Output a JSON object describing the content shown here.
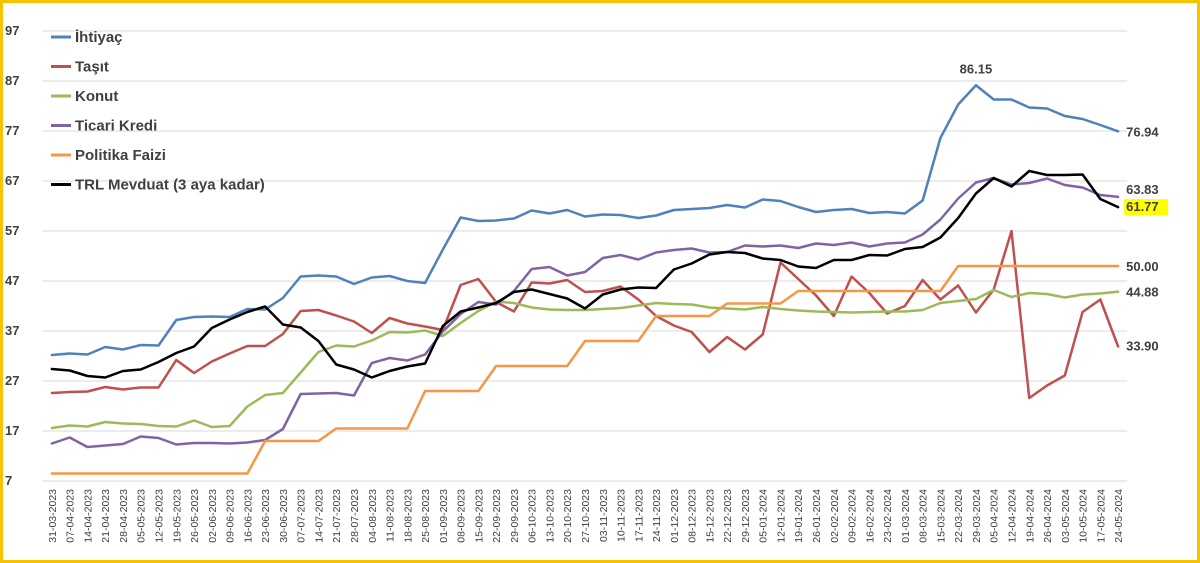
{
  "chart_data": {
    "type": "line",
    "title": "",
    "xlabel": "",
    "ylabel": "",
    "ylim": [
      7,
      97
    ],
    "yticks": [
      7,
      17,
      27,
      37,
      47,
      57,
      67,
      77,
      87,
      97
    ],
    "grid": "horizontal",
    "legend_position": "top-left",
    "x": [
      "31-03-2023",
      "07-04-2023",
      "14-04-2023",
      "21-04-2023",
      "28-04-2023",
      "05-05-2023",
      "12-05-2023",
      "19-05-2023",
      "26-05-2023",
      "02-06-2023",
      "09-06-2023",
      "16-06-2023",
      "23-06-2023",
      "30-06-2023",
      "07-07-2023",
      "14-07-2023",
      "21-07-2023",
      "28-07-2023",
      "04-08-2023",
      "11-08-2023",
      "18-08-2023",
      "25-08-2023",
      "01-09-2023",
      "08-09-2023",
      "15-09-2023",
      "22-09-2023",
      "29-09-2023",
      "06-10-2023",
      "13-10-2023",
      "20-10-2023",
      "27-10-2023",
      "03-11-2023",
      "10-11-2023",
      "17-11-2023",
      "24-11-2023",
      "01-12-2023",
      "08-12-2023",
      "15-12-2023",
      "22-12-2023",
      "29-12-2023",
      "05-01-2024",
      "12-01-2024",
      "19-01-2024",
      "26-01-2024",
      "02-02-2024",
      "09-02-2024",
      "16-02-2024",
      "23-02-2024",
      "01-03-2024",
      "08-03-2024",
      "15-03-2024",
      "22-03-2024",
      "29-03-2024",
      "05-04-2024",
      "12-04-2024",
      "19-04-2024",
      "26-04-2024",
      "03-05-2024",
      "10-05-2024",
      "17-05-2024",
      "24-05-2024"
    ],
    "series": [
      {
        "name": "İhtiyaç",
        "color": "#4f81bd",
        "end_label": "76.94",
        "peak_label": "86.15",
        "peak_index": 52,
        "values": [
          32.2,
          32.5,
          32.3,
          33.8,
          33.3,
          34.2,
          34.1,
          39.2,
          39.8,
          39.9,
          39.8,
          41.4,
          41.3,
          43.6,
          47.9,
          48.1,
          47.9,
          46.4,
          47.7,
          48.0,
          47.0,
          46.6,
          53.3,
          59.7,
          59.0,
          59.1,
          59.5,
          61.1,
          60.5,
          61.2,
          59.9,
          60.3,
          60.2,
          59.6,
          60.1,
          61.2,
          61.4,
          61.6,
          62.2,
          61.7,
          63.3,
          63.0,
          61.8,
          60.8,
          61.2,
          61.4,
          60.6,
          60.8,
          60.5,
          63.1,
          75.6,
          82.3,
          86.15,
          83.3,
          83.3,
          81.7,
          81.5,
          80.0,
          79.4,
          78.2,
          76.94
        ]
      },
      {
        "name": "Taşıt",
        "color": "#c0504d",
        "end_label": "33.90",
        "values": [
          24.6,
          24.8,
          24.9,
          25.8,
          25.3,
          25.7,
          25.7,
          31.2,
          28.6,
          30.9,
          32.5,
          34.0,
          34.0,
          36.4,
          41.0,
          41.2,
          40.1,
          38.9,
          36.6,
          39.6,
          38.5,
          37.9,
          37.2,
          46.2,
          47.4,
          42.8,
          40.9,
          46.7,
          46.5,
          47.2,
          44.8,
          45.0,
          45.9,
          43.3,
          40.0,
          38.1,
          36.8,
          32.8,
          35.8,
          33.3,
          36.3,
          50.7,
          47.4,
          44.1,
          40.0,
          47.9,
          44.6,
          40.5,
          42.0,
          47.2,
          43.3,
          46.1,
          40.7,
          45.3,
          57.0,
          23.6,
          26.1,
          28.1,
          40.8,
          43.3,
          33.9
        ]
      },
      {
        "name": "Konut",
        "color": "#9bbb59",
        "end_label": "44.88",
        "values": [
          17.6,
          18.1,
          17.9,
          18.8,
          18.5,
          18.4,
          18.0,
          17.9,
          19.1,
          17.8,
          18.0,
          21.9,
          24.2,
          24.6,
          28.7,
          32.8,
          34.1,
          33.9,
          35.1,
          36.8,
          36.7,
          37.1,
          36.0,
          38.6,
          41.0,
          42.9,
          42.6,
          41.7,
          41.3,
          41.2,
          41.2,
          41.4,
          41.6,
          42.1,
          42.6,
          42.4,
          42.3,
          41.7,
          41.5,
          41.3,
          41.8,
          41.4,
          41.1,
          40.9,
          40.8,
          40.7,
          40.8,
          40.9,
          40.9,
          41.2,
          42.6,
          43.0,
          43.4,
          45.2,
          43.8,
          44.6,
          44.4,
          43.7,
          44.3,
          44.5,
          44.88
        ]
      },
      {
        "name": "Ticari Kredi",
        "color": "#8064a2",
        "end_label": "63.83",
        "values": [
          14.5,
          15.7,
          13.8,
          14.1,
          14.4,
          15.9,
          15.6,
          14.3,
          14.6,
          14.6,
          14.5,
          14.7,
          15.2,
          17.4,
          24.4,
          24.5,
          24.6,
          24.1,
          30.6,
          31.6,
          31.1,
          32.3,
          36.9,
          40.4,
          42.8,
          42.3,
          45.0,
          49.4,
          49.8,
          48.1,
          48.8,
          51.6,
          52.2,
          51.3,
          52.7,
          53.2,
          53.5,
          52.7,
          52.8,
          54.1,
          53.9,
          54.1,
          53.6,
          54.5,
          54.2,
          54.7,
          53.9,
          54.5,
          54.7,
          56.3,
          59.3,
          63.5,
          66.7,
          67.6,
          66.3,
          66.6,
          67.5,
          66.2,
          65.7,
          64.2,
          63.83
        ]
      },
      {
        "name": "Politika Faizi",
        "color": "#f79646",
        "end_label": "50.00",
        "values": [
          8.5,
          8.5,
          8.5,
          8.5,
          8.5,
          8.5,
          8.5,
          8.5,
          8.5,
          8.5,
          8.5,
          8.5,
          15.0,
          15.0,
          15.0,
          15.0,
          17.5,
          17.5,
          17.5,
          17.5,
          17.5,
          25.0,
          25.0,
          25.0,
          25.0,
          30.0,
          30.0,
          30.0,
          30.0,
          30.0,
          35.0,
          35.0,
          35.0,
          35.0,
          40.0,
          40.0,
          40.0,
          40.0,
          42.5,
          42.5,
          42.5,
          42.5,
          45.0,
          45.0,
          45.0,
          45.0,
          45.0,
          45.0,
          45.0,
          45.0,
          45.0,
          50.0,
          50.0,
          50.0,
          50.0,
          50.0,
          50.0,
          50.0,
          50.0,
          50.0,
          50.0
        ]
      },
      {
        "name": "TRL Mevduat (3 aya kadar)",
        "color": "#000000",
        "end_label": "61.77",
        "end_label_highlight": "#ffff00",
        "values": [
          29.4,
          29.1,
          28.0,
          27.7,
          29.0,
          29.3,
          30.8,
          32.6,
          33.9,
          37.6,
          39.3,
          40.8,
          41.9,
          38.3,
          37.7,
          35.0,
          30.3,
          29.3,
          27.7,
          29.0,
          29.9,
          30.5,
          38.0,
          40.9,
          41.7,
          42.6,
          44.8,
          45.3,
          44.4,
          43.5,
          41.5,
          44.3,
          45.3,
          45.7,
          45.6,
          49.3,
          50.5,
          52.3,
          52.8,
          52.6,
          51.5,
          51.2,
          49.9,
          49.6,
          51.2,
          51.2,
          52.2,
          52.1,
          53.4,
          53.8,
          55.7,
          59.6,
          64.5,
          67.6,
          65.9,
          69.0,
          68.2,
          68.2,
          68.3,
          63.4,
          61.77
        ]
      }
    ]
  }
}
